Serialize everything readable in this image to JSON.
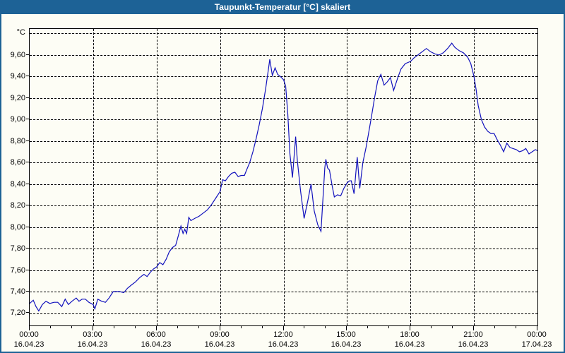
{
  "window": {
    "title": "Taupunkt-Temperatur [°C] skaliert"
  },
  "colors": {
    "titlebar_bg": "#1d6296",
    "titlebar_text": "#ffffff",
    "window_bg": "#fdfdf5",
    "window_border": "#1d6296",
    "plot_border": "#000000",
    "grid": "#000000",
    "line": "#1212bd",
    "label_text": "#000000"
  },
  "y_axis": {
    "unit_label": "°C",
    "gridline_values": [
      9.8,
      9.6,
      9.4,
      9.2,
      9.0,
      8.8,
      8.6,
      8.4,
      8.2,
      8.0,
      7.8,
      7.6,
      7.4,
      7.2
    ],
    "tick_labels": [
      {
        "value": 9.6,
        "label": "9,60"
      },
      {
        "value": 9.4,
        "label": "9,40"
      },
      {
        "value": 9.2,
        "label": "9,20"
      },
      {
        "value": 9.0,
        "label": "9,00"
      },
      {
        "value": 8.8,
        "label": "8,80"
      },
      {
        "value": 8.6,
        "label": "8,60"
      },
      {
        "value": 8.4,
        "label": "8,40"
      },
      {
        "value": 8.2,
        "label": "8,20"
      },
      {
        "value": 8.0,
        "label": "8,00"
      },
      {
        "value": 7.8,
        "label": "7,80"
      },
      {
        "value": 7.6,
        "label": "7,60"
      },
      {
        "value": 7.4,
        "label": "7,40"
      },
      {
        "value": 7.2,
        "label": "7,20"
      }
    ]
  },
  "x_axis": {
    "minor_tick_every_hours": 1,
    "major_ticks": [
      {
        "hour": 0,
        "time": "00:00",
        "date": "16.04.23"
      },
      {
        "hour": 3,
        "time": "03:00",
        "date": "16.04.23"
      },
      {
        "hour": 6,
        "time": "06:00",
        "date": "16.04.23"
      },
      {
        "hour": 9,
        "time": "09:00",
        "date": "16.04.23"
      },
      {
        "hour": 12,
        "time": "12:00",
        "date": "16.04.23"
      },
      {
        "hour": 15,
        "time": "15:00",
        "date": "16.04.23"
      },
      {
        "hour": 18,
        "time": "18:00",
        "date": "16.04.23"
      },
      {
        "hour": 21,
        "time": "21:00",
        "date": "16.04.23"
      },
      {
        "hour": 24,
        "time": "00:00",
        "date": "17.04.23"
      }
    ]
  },
  "chart_data": {
    "type": "line",
    "title": "Taupunkt-Temperatur [°C] skaliert",
    "series_name": "Taupunkt-Temperatur",
    "ylabel": "°C",
    "xlabel": "",
    "grid": "dashed",
    "legend": false,
    "xlim_hours": [
      0,
      24
    ],
    "ylim": [
      7.085,
      9.842
    ],
    "x_hours": [
      0.0,
      0.17,
      0.3,
      0.43,
      0.6,
      0.77,
      0.95,
      1.15,
      1.33,
      1.52,
      1.68,
      1.83,
      2.0,
      2.2,
      2.33,
      2.48,
      2.63,
      2.8,
      3.0,
      3.08,
      3.22,
      3.4,
      3.58,
      3.75,
      3.95,
      4.25,
      4.45,
      4.62,
      4.8,
      5.0,
      5.2,
      5.4,
      5.55,
      5.7,
      5.85,
      6.0,
      6.15,
      6.3,
      6.45,
      6.6,
      6.75,
      6.9,
      7.0,
      7.15,
      7.25,
      7.33,
      7.42,
      7.52,
      7.62,
      7.8,
      8.0,
      8.2,
      8.4,
      8.6,
      8.8,
      9.0,
      9.12,
      9.25,
      9.4,
      9.55,
      9.7,
      9.85,
      10.0,
      10.15,
      10.25,
      10.4,
      10.55,
      10.7,
      10.85,
      11.0,
      11.15,
      11.28,
      11.35,
      11.47,
      11.6,
      11.72,
      11.85,
      12.0,
      12.1,
      12.2,
      12.3,
      12.42,
      12.57,
      12.65,
      12.8,
      12.97,
      13.15,
      13.3,
      13.45,
      13.62,
      13.77,
      13.95,
      14.0,
      14.08,
      14.17,
      14.3,
      14.4,
      14.55,
      14.7,
      14.85,
      15.0,
      15.12,
      15.2,
      15.33,
      15.48,
      15.6,
      15.75,
      15.9,
      16.0,
      16.15,
      16.3,
      16.45,
      16.6,
      16.75,
      16.9,
      17.05,
      17.2,
      17.4,
      17.55,
      17.75,
      18.0,
      18.15,
      18.35,
      18.55,
      18.75,
      18.95,
      19.15,
      19.35,
      19.55,
      19.75,
      19.95,
      20.1,
      20.3,
      20.5,
      20.7,
      20.85,
      21.0,
      21.1,
      21.2,
      21.35,
      21.5,
      21.65,
      21.8,
      21.95,
      22.1,
      22.25,
      22.4,
      22.55,
      22.7,
      22.85,
      23.0,
      23.15,
      23.3,
      23.45,
      23.6,
      23.75,
      23.9,
      24.0
    ],
    "values": [
      7.29,
      7.32,
      7.26,
      7.22,
      7.28,
      7.31,
      7.29,
      7.3,
      7.3,
      7.26,
      7.33,
      7.28,
      7.31,
      7.34,
      7.31,
      7.33,
      7.33,
      7.3,
      7.28,
      7.24,
      7.33,
      7.31,
      7.3,
      7.34,
      7.4,
      7.4,
      7.39,
      7.43,
      7.46,
      7.49,
      7.53,
      7.56,
      7.54,
      7.58,
      7.61,
      7.63,
      7.67,
      7.65,
      7.7,
      7.77,
      7.81,
      7.83,
      7.9,
      8.01,
      7.94,
      7.98,
      7.94,
      8.09,
      8.06,
      8.08,
      8.1,
      8.13,
      8.16,
      8.21,
      8.27,
      8.33,
      8.44,
      8.43,
      8.47,
      8.5,
      8.51,
      8.47,
      8.48,
      8.48,
      8.53,
      8.6,
      8.7,
      8.82,
      8.95,
      9.1,
      9.28,
      9.46,
      9.56,
      9.41,
      9.48,
      9.42,
      9.4,
      9.37,
      9.31,
      9.05,
      8.68,
      8.46,
      8.84,
      8.62,
      8.34,
      8.08,
      8.25,
      8.4,
      8.15,
      8.02,
      7.96,
      8.55,
      8.63,
      8.55,
      8.53,
      8.38,
      8.28,
      8.3,
      8.29,
      8.36,
      8.41,
      8.43,
      8.43,
      8.31,
      8.65,
      8.36,
      8.6,
      8.74,
      8.85,
      9.02,
      9.2,
      9.36,
      9.42,
      9.32,
      9.35,
      9.39,
      9.27,
      9.39,
      9.47,
      9.52,
      9.54,
      9.57,
      9.6,
      9.63,
      9.66,
      9.63,
      9.61,
      9.6,
      9.62,
      9.66,
      9.71,
      9.67,
      9.64,
      9.62,
      9.58,
      9.52,
      9.4,
      9.28,
      9.13,
      9.0,
      8.93,
      8.89,
      8.87,
      8.87,
      8.81,
      8.76,
      8.7,
      8.78,
      8.74,
      8.73,
      8.72,
      8.7,
      8.71,
      8.73,
      8.68,
      8.7,
      8.72,
      8.71
    ]
  }
}
